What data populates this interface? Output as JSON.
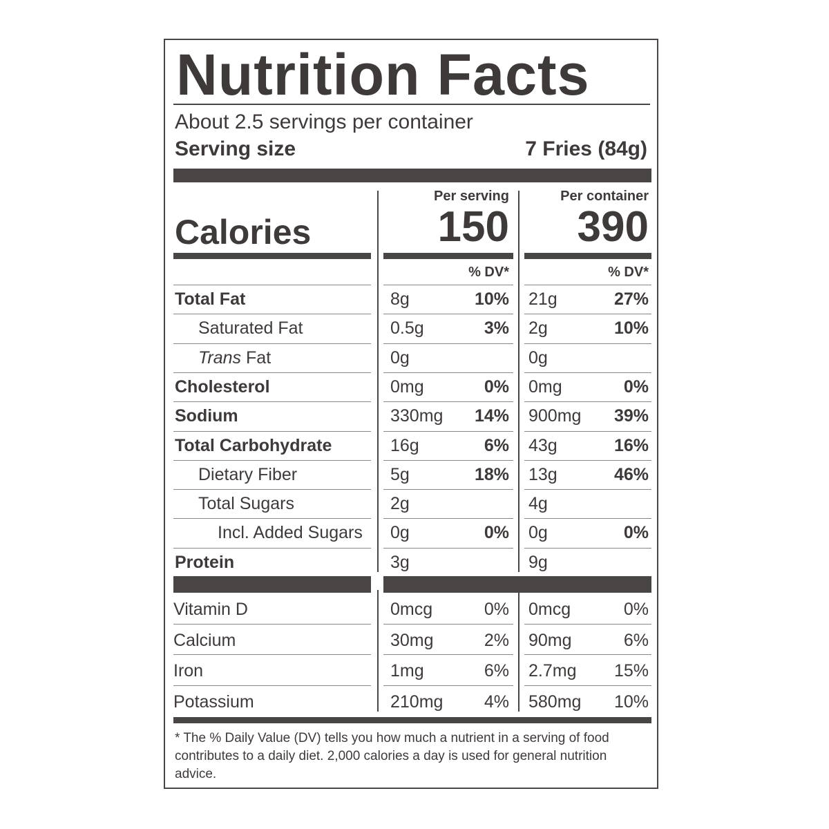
{
  "label": {
    "title": "Nutrition Facts",
    "servings_per_container": "About 2.5 servings per container",
    "serving_size_label": "Serving size",
    "serving_size_value": "7 Fries (84g)",
    "per_serving_header": "Per serving",
    "per_container_header": "Per container",
    "calories_label": "Calories",
    "calories_per_serving": "150",
    "calories_per_container": "390",
    "dv_header": "% DV*",
    "nutrients": [
      {
        "name": "Total Fat",
        "bold": true,
        "italic_prefix": "",
        "indent": 0,
        "serving_amount": "8g",
        "serving_dv": "10%",
        "container_amount": "21g",
        "container_dv": "27%"
      },
      {
        "name": "Saturated Fat",
        "bold": false,
        "italic_prefix": "",
        "indent": 1,
        "serving_amount": "0.5g",
        "serving_dv": "3%",
        "container_amount": "2g",
        "container_dv": "10%"
      },
      {
        "name": "Fat",
        "bold": false,
        "italic_prefix": "Trans",
        "indent": 1,
        "serving_amount": "0g",
        "serving_dv": "",
        "container_amount": "0g",
        "container_dv": ""
      },
      {
        "name": "Cholesterol",
        "bold": true,
        "italic_prefix": "",
        "indent": 0,
        "serving_amount": "0mg",
        "serving_dv": "0%",
        "container_amount": "0mg",
        "container_dv": "0%"
      },
      {
        "name": "Sodium",
        "bold": true,
        "italic_prefix": "",
        "indent": 0,
        "serving_amount": "330mg",
        "serving_dv": "14%",
        "container_amount": "900mg",
        "container_dv": "39%"
      },
      {
        "name": "Total Carbohydrate",
        "bold": true,
        "italic_prefix": "",
        "indent": 0,
        "serving_amount": "16g",
        "serving_dv": "6%",
        "container_amount": "43g",
        "container_dv": "16%"
      },
      {
        "name": "Dietary Fiber",
        "bold": false,
        "italic_prefix": "",
        "indent": 1,
        "serving_amount": "5g",
        "serving_dv": "18%",
        "container_amount": "13g",
        "container_dv": "46%"
      },
      {
        "name": "Total Sugars",
        "bold": false,
        "italic_prefix": "",
        "indent": 1,
        "serving_amount": "2g",
        "serving_dv": "",
        "container_amount": "4g",
        "container_dv": ""
      },
      {
        "name": "Incl. Added Sugars",
        "bold": false,
        "italic_prefix": "",
        "indent": 2,
        "serving_amount": "0g",
        "serving_dv": "0%",
        "container_amount": "0g",
        "container_dv": "0%"
      },
      {
        "name": "Protein",
        "bold": true,
        "italic_prefix": "",
        "indent": 0,
        "serving_amount": "3g",
        "serving_dv": "",
        "container_amount": "9g",
        "container_dv": ""
      }
    ],
    "vitamins": [
      {
        "name": "Vitamin D",
        "serving_amount": "0mcg",
        "serving_dv": "0%",
        "container_amount": "0mcg",
        "container_dv": "0%"
      },
      {
        "name": "Calcium",
        "serving_amount": "30mg",
        "serving_dv": "2%",
        "container_amount": "90mg",
        "container_dv": "6%"
      },
      {
        "name": "Iron",
        "serving_amount": "1mg",
        "serving_dv": "6%",
        "container_amount": "2.7mg",
        "container_dv": "15%"
      },
      {
        "name": "Potassium",
        "serving_amount": "210mg",
        "serving_dv": "4%",
        "container_amount": "580mg",
        "container_dv": "10%"
      }
    ],
    "footnote": "* The % Daily Value (DV) tells you how much a nutrient in a serving of food contributes to a daily diet. 2,000 calories a day is used for general nutrition advice."
  }
}
